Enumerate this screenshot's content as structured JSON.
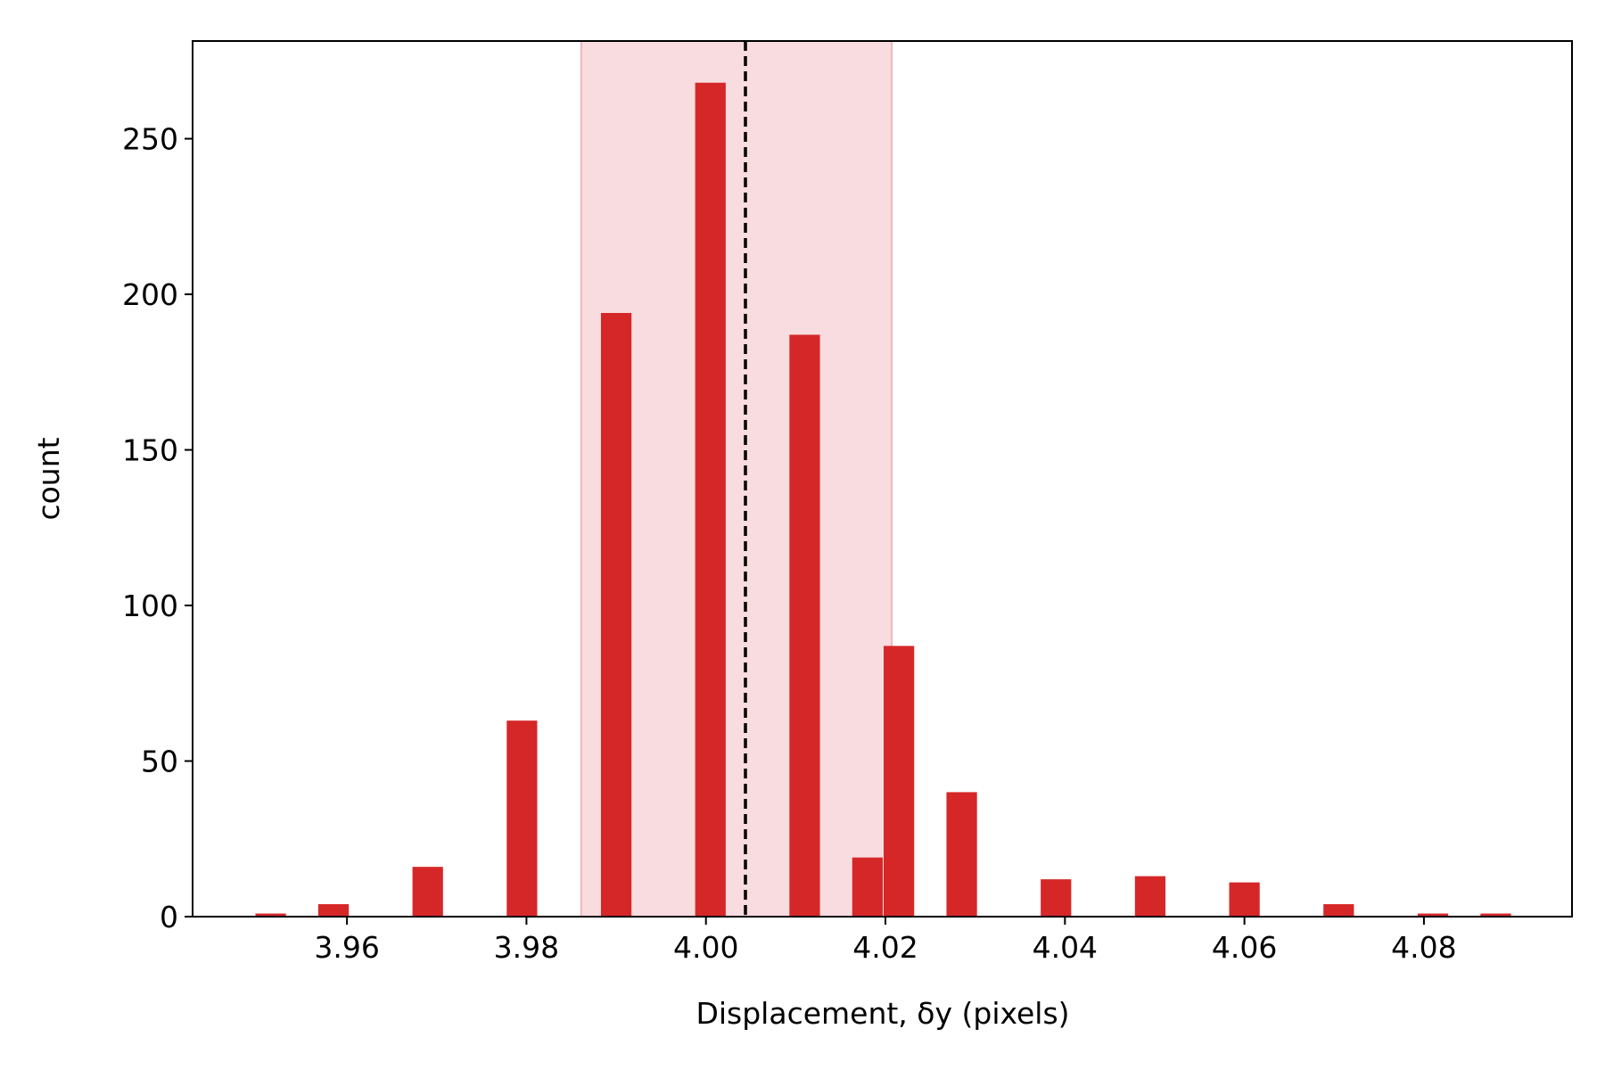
{
  "chart_data": {
    "type": "histogram",
    "xlabel": "Displacement, δy (pixels)",
    "ylabel": "count",
    "bins": [
      3.9498,
      3.9533,
      3.9568,
      3.9603,
      3.9638,
      3.9673,
      3.9708,
      3.9743,
      3.9778,
      3.9813,
      3.9848,
      3.9883,
      3.9918,
      3.9953,
      3.9988,
      4.0023,
      4.0058,
      4.0093,
      4.0128,
      4.0163,
      4.0198,
      4.0233,
      4.0268,
      4.0303,
      4.0338,
      4.0373,
      4.0408,
      4.0443,
      4.0478,
      4.0513,
      4.0548,
      4.0583,
      4.0618,
      4.0653,
      4.0688,
      4.0723,
      4.0758,
      4.0793,
      4.0828,
      4.0863,
      4.0898
    ],
    "values": [
      1,
      0,
      4,
      0,
      0,
      16,
      0,
      0,
      63,
      0,
      0,
      194,
      0,
      0,
      268,
      0,
      0,
      187,
      0,
      19,
      87,
      0,
      40,
      0,
      0,
      12,
      0,
      0,
      13,
      0,
      0,
      11,
      0,
      0,
      4,
      0,
      0,
      1,
      0,
      1
    ],
    "color": "#d62728",
    "span": [
      3.9861,
      4.0207
    ],
    "span_color": "#f8dcdf",
    "vline": 4.0044,
    "xlim": [
      3.9428,
      4.0965
    ],
    "ylim": [
      0,
      281.4
    ],
    "xticks": [
      3.96,
      3.98,
      {
        "value": 4,
        "label": "4.00"
      },
      4.02,
      4.04,
      4.06,
      4.08
    ],
    "yticks": [
      0,
      50,
      100,
      150,
      200,
      250
    ]
  }
}
